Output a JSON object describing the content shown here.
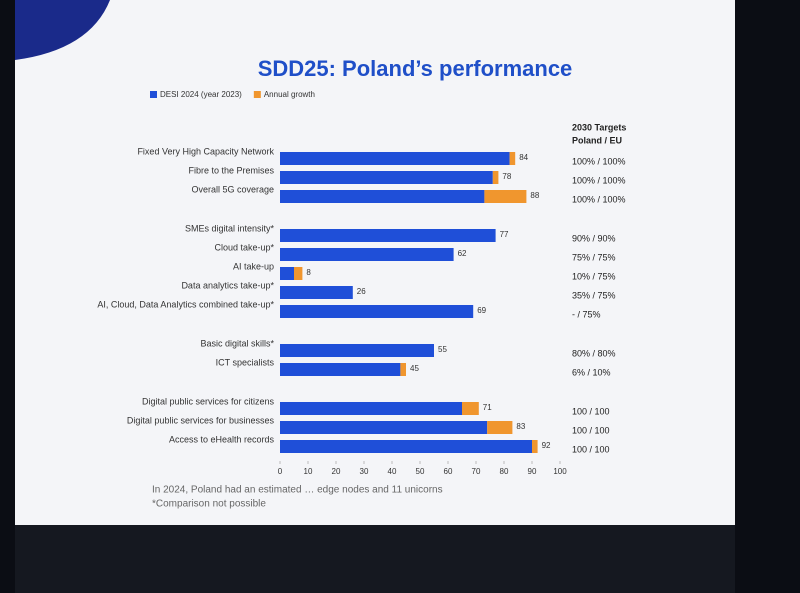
{
  "chart_data": {
    "type": "bar",
    "orientation": "horizontal",
    "stacked": true,
    "title": "SDD25: Poland’s performance",
    "categories": [
      "Fixed Very High Capacity Network",
      "Fibre to the Premises",
      "Overall 5G coverage",
      "SMEs digital intensity*",
      "Cloud take-up*",
      "AI take-up",
      "Data analytics take-up*",
      "AI, Cloud, Data Analytics combined take-up*",
      "Basic digital skills*",
      "ICT specialists",
      "Digital public services for citizens",
      "Digital public services for businesses",
      "Access to eHealth records"
    ],
    "series": [
      {
        "name": "DESI 2024 (year 2023)",
        "color": "#1f4fd8",
        "values": [
          82,
          76,
          73,
          77,
          62,
          5,
          26,
          69,
          55,
          43,
          65,
          74,
          90
        ]
      },
      {
        "name": "Annual growth",
        "color": "#f0962e",
        "values": [
          2,
          2,
          15,
          null,
          null,
          3,
          null,
          null,
          null,
          2,
          6,
          9,
          2
        ]
      }
    ],
    "totals": [
      84,
      78,
      88,
      77,
      62,
      8,
      26,
      69,
      55,
      45,
      71,
      83,
      92
    ],
    "targets_title": "2030 Targets",
    "targets_subtitle": "Poland / EU",
    "targets": [
      "100% / 100%",
      "100% / 100%",
      "100% / 100%",
      "90% / 90%",
      "75% / 75%",
      "10% / 75%",
      "35% / 75%",
      "- / 75%",
      "80% / 80%",
      "6% / 10%",
      "100 / 100",
      "100 / 100",
      "100 / 100"
    ],
    "xlim": [
      0,
      100
    ],
    "xticks": [
      0,
      10,
      20,
      30,
      40,
      50,
      60,
      70,
      80,
      90,
      100
    ],
    "footnotes": [
      "In 2024, Poland had an estimated … edge nodes and 11 unicorns",
      "*Comparison not possible"
    ]
  }
}
